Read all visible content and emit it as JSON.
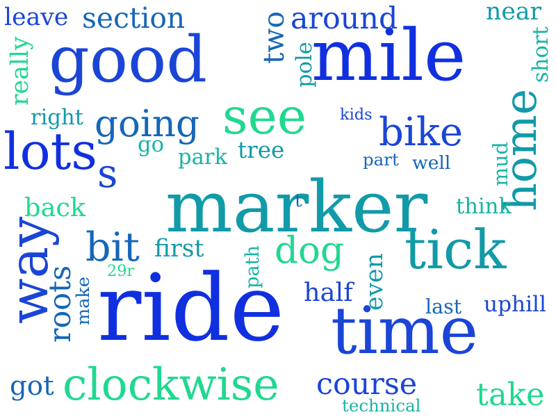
{
  "palette": {
    "royal_blue": "#1030e0",
    "blue": "#1a45d6",
    "steel_blue": "#1666b8",
    "teal": "#119aa8",
    "aqua": "#17b4a4",
    "green": "#20d890"
  },
  "words": [
    {
      "text": "ride",
      "color": "#1030e0"
    },
    {
      "text": "marker",
      "color": "#119aa8"
    },
    {
      "text": "mile",
      "color": "#1030e0"
    },
    {
      "text": "good",
      "color": "#1a45d6"
    },
    {
      "text": "time",
      "color": "#1a45d6"
    },
    {
      "text": "lots",
      "color": "#1030e0"
    },
    {
      "text": "way",
      "color": "#1a45d6"
    },
    {
      "text": "tick",
      "color": "#119aa8"
    },
    {
      "text": "see",
      "color": "#20d890"
    },
    {
      "text": "s",
      "color": "#1a45d6"
    },
    {
      "text": "clockwise",
      "color": "#20d890"
    },
    {
      "text": "going",
      "color": "#1666b8"
    },
    {
      "text": "bike",
      "color": "#1a45d6"
    },
    {
      "text": "home",
      "color": "#119aa8"
    },
    {
      "text": "dog",
      "color": "#20d890"
    },
    {
      "text": "course",
      "color": "#1a45d6"
    },
    {
      "text": "two",
      "color": "#1666b8"
    },
    {
      "text": "bit",
      "color": "#1666b8"
    },
    {
      "text": "around",
      "color": "#1a45d6"
    },
    {
      "text": "section",
      "color": "#1666b8"
    },
    {
      "text": "roots",
      "color": "#1666b8"
    },
    {
      "text": "take",
      "color": "#20d890"
    },
    {
      "text": "got",
      "color": "#1666b8"
    },
    {
      "text": "first",
      "color": "#119aa8"
    },
    {
      "text": "back",
      "color": "#20d890"
    },
    {
      "text": "leave",
      "color": "#1a45d6"
    },
    {
      "text": "near",
      "color": "#119aa8"
    },
    {
      "text": "tree",
      "color": "#119aa8"
    },
    {
      "text": "even",
      "color": "#119aa8"
    },
    {
      "text": "really",
      "color": "#20d890"
    },
    {
      "text": "right",
      "color": "#119aa8"
    },
    {
      "text": "pole",
      "color": "#119aa8"
    },
    {
      "text": "mud",
      "color": "#17b4a4"
    },
    {
      "text": "park",
      "color": "#17b4a4"
    },
    {
      "text": "go",
      "color": "#17b4a4"
    },
    {
      "text": "half",
      "color": "#1a45d6"
    },
    {
      "text": "last",
      "color": "#1666b8"
    },
    {
      "text": "uphill",
      "color": "#1a45d6"
    },
    {
      "text": "think",
      "color": "#17b4a4"
    },
    {
      "text": "well",
      "color": "#1666b8"
    },
    {
      "text": "path",
      "color": "#17b4a4"
    },
    {
      "text": "make",
      "color": "#1666b8"
    },
    {
      "text": "short",
      "color": "#17b4a4"
    },
    {
      "text": "kids",
      "color": "#1a45d6"
    },
    {
      "text": "part",
      "color": "#1666b8"
    },
    {
      "text": "technical",
      "color": "#17b4a4"
    },
    {
      "text": "29r",
      "color": "#20d890"
    },
    {
      "text": "t",
      "color": "#1666b8"
    }
  ]
}
